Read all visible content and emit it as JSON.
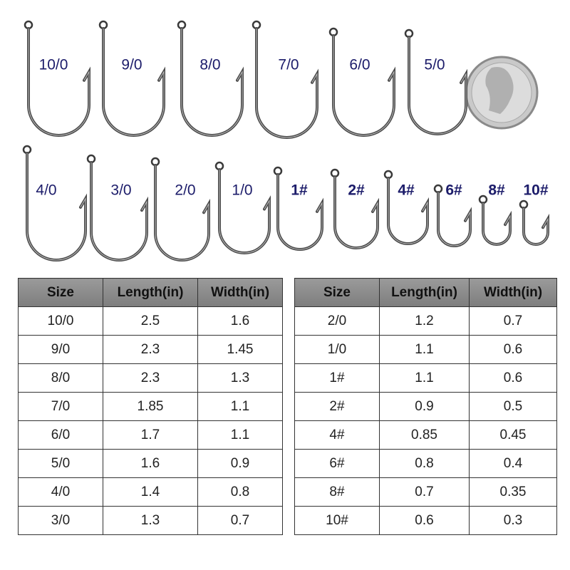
{
  "hooks": {
    "row1": [
      "10/0",
      "9/0",
      "8/0",
      "7/0",
      "6/0",
      "5/0"
    ],
    "row2": [
      "4/0",
      "3/0",
      "2/0",
      "1/0",
      "1#",
      "2#",
      "4#",
      "6#",
      "8#",
      "10#"
    ]
  },
  "tables": [
    {
      "header": [
        "Size",
        "Length(in)",
        "Width(in)"
      ],
      "rows": [
        [
          "10/0",
          "2.5",
          "1.6"
        ],
        [
          "9/0",
          "2.3",
          "1.45"
        ],
        [
          "8/0",
          "2.3",
          "1.3"
        ],
        [
          "7/0",
          "1.85",
          "1.1"
        ],
        [
          "6/0",
          "1.7",
          "1.1"
        ],
        [
          "5/0",
          "1.6",
          "0.9"
        ],
        [
          "4/0",
          "1.4",
          "0.8"
        ],
        [
          "3/0",
          "1.3",
          "0.7"
        ]
      ]
    },
    {
      "header": [
        "Size",
        "Length(in)",
        "Width(in)"
      ],
      "rows": [
        [
          "2/0",
          "1.2",
          "0.7"
        ],
        [
          "1/0",
          "1.1",
          "0.6"
        ],
        [
          "1#",
          "1.1",
          "0.6"
        ],
        [
          "2#",
          "0.9",
          "0.5"
        ],
        [
          "4#",
          "0.85",
          "0.45"
        ],
        [
          "6#",
          "0.8",
          "0.4"
        ],
        [
          "8#",
          "0.7",
          "0.35"
        ],
        [
          "10#",
          "0.6",
          "0.3"
        ]
      ]
    }
  ]
}
